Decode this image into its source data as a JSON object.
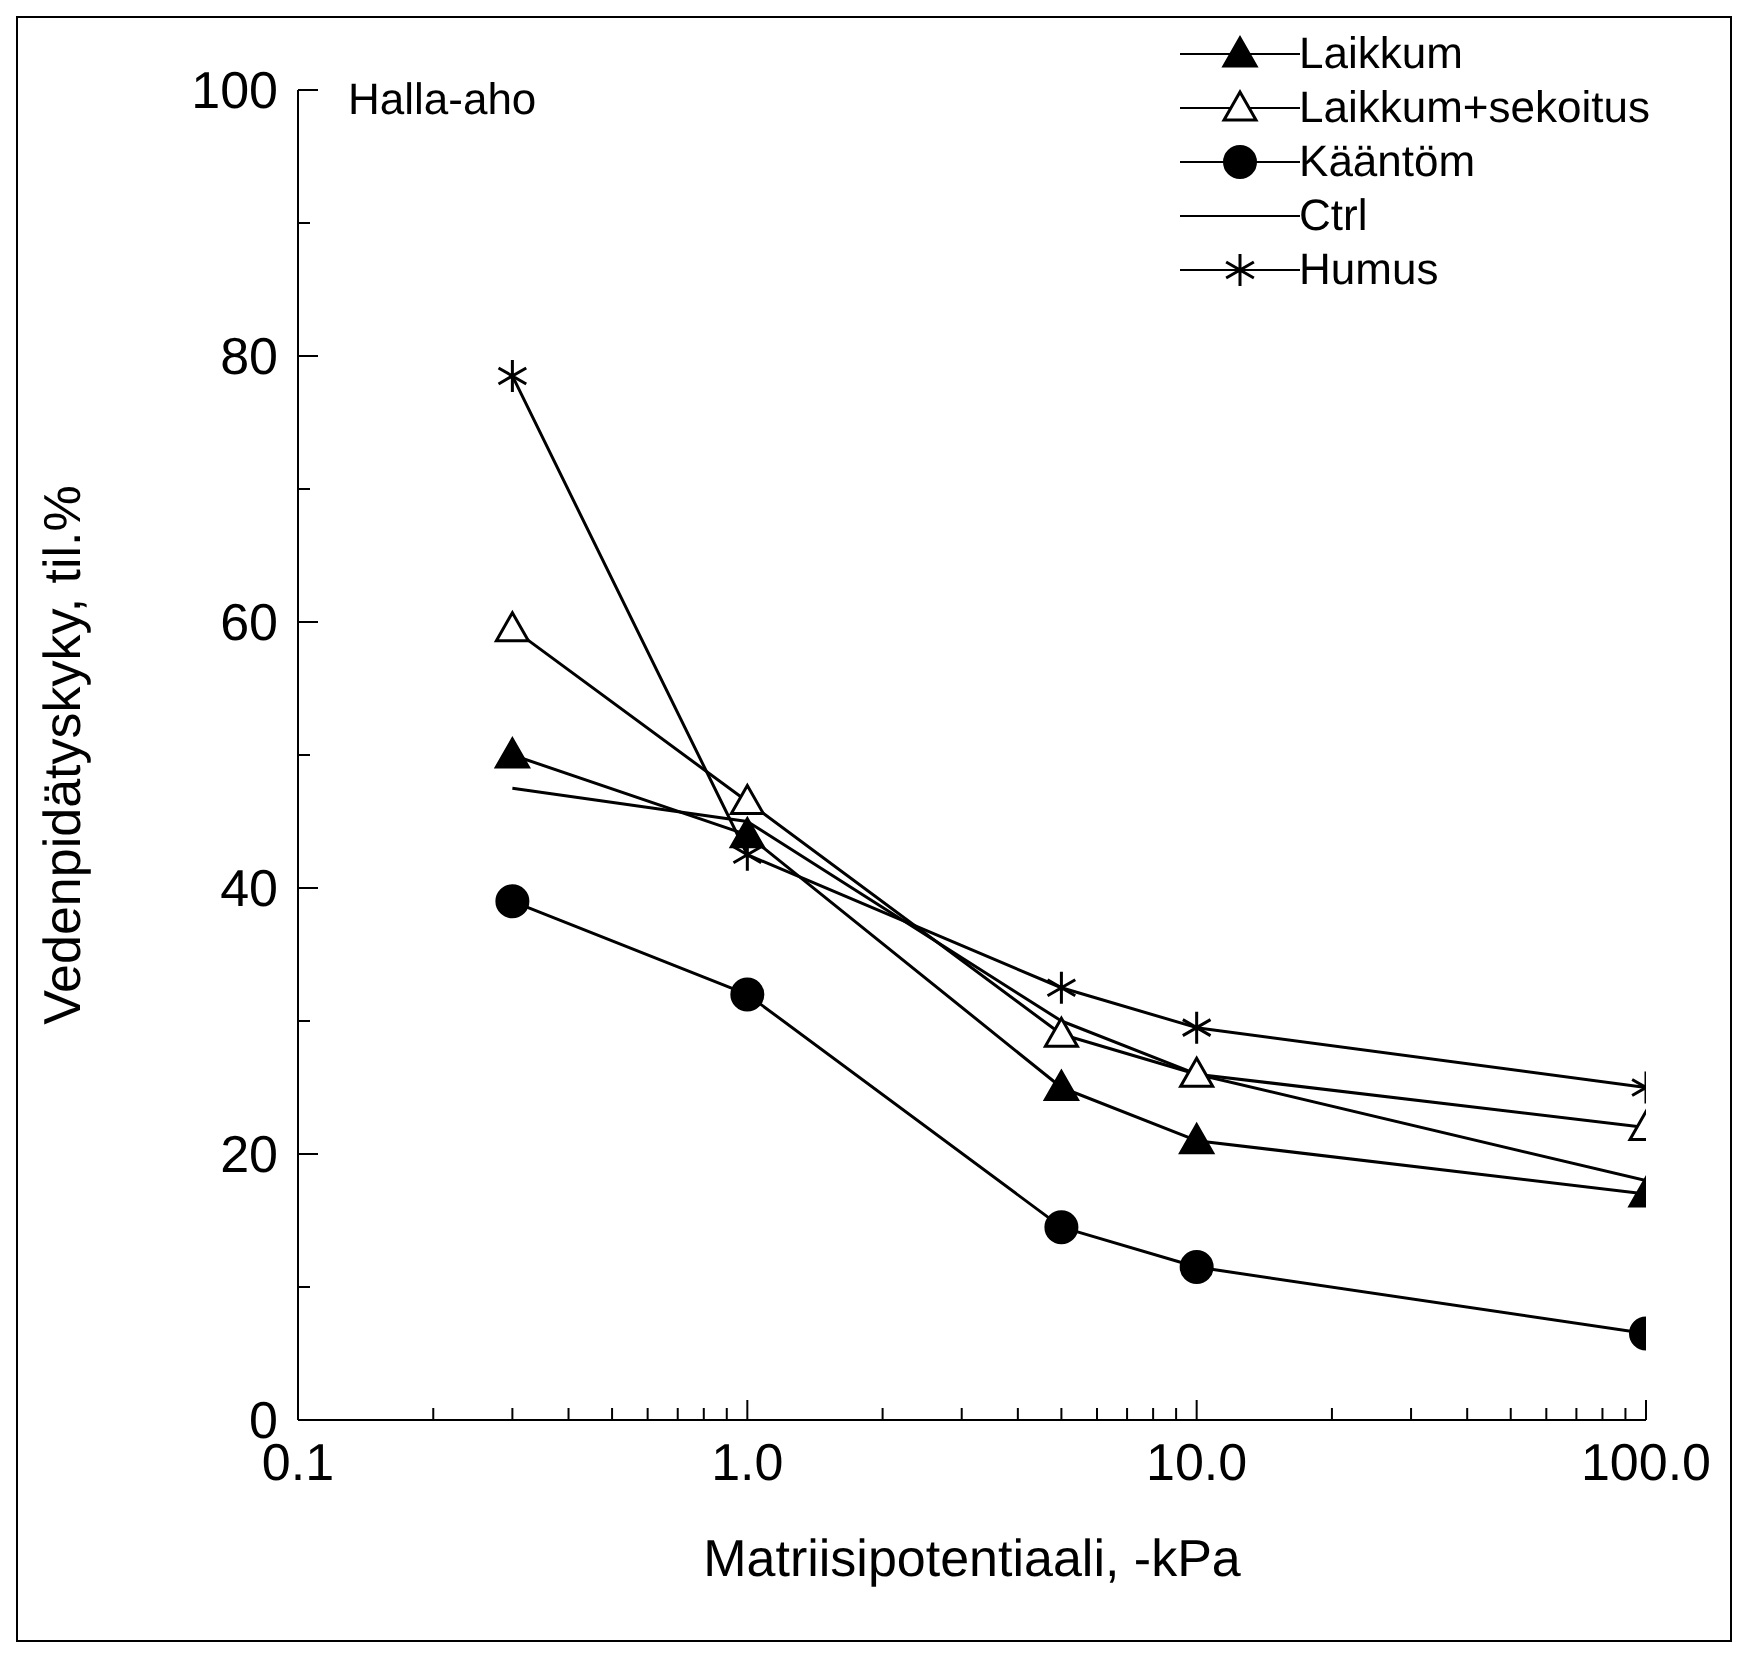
{
  "chart_data": {
    "type": "line",
    "xlabel": "Matriisipotentiaali, -kPa",
    "ylabel": "Vedenpidätyskyky, til.%",
    "annotations": [
      "Halla-aho"
    ],
    "log": "x",
    "xlim": [
      0.1,
      100
    ],
    "ylim": [
      0,
      100
    ],
    "xticks": [
      {
        "value": 0.1,
        "label": "0.1"
      },
      {
        "value": 0.2,
        "label": null
      },
      {
        "value": 0.3,
        "label": null
      },
      {
        "value": 0.4,
        "label": null
      },
      {
        "value": 0.5,
        "label": null
      },
      {
        "value": 0.6,
        "label": null
      },
      {
        "value": 0.7,
        "label": null
      },
      {
        "value": 0.8,
        "label": null
      },
      {
        "value": 0.9,
        "label": null
      },
      {
        "value": 1,
        "label": "1.0"
      },
      {
        "value": 2,
        "label": null
      },
      {
        "value": 3,
        "label": null
      },
      {
        "value": 4,
        "label": null
      },
      {
        "value": 5,
        "label": null
      },
      {
        "value": 6,
        "label": null
      },
      {
        "value": 7,
        "label": null
      },
      {
        "value": 8,
        "label": null
      },
      {
        "value": 9,
        "label": null
      },
      {
        "value": 10,
        "label": "10.0"
      },
      {
        "value": 20,
        "label": null
      },
      {
        "value": 30,
        "label": null
      },
      {
        "value": 40,
        "label": null
      },
      {
        "value": 50,
        "label": null
      },
      {
        "value": 60,
        "label": null
      },
      {
        "value": 70,
        "label": null
      },
      {
        "value": 80,
        "label": null
      },
      {
        "value": 90,
        "label": null
      },
      {
        "value": 100,
        "label": "100.0"
      }
    ],
    "yticks": [
      0,
      {
        "value": 10,
        "label": null
      },
      20,
      {
        "value": 30,
        "label": null
      },
      40,
      {
        "value": 50,
        "label": null
      },
      60,
      {
        "value": 70,
        "label": null
      },
      80,
      {
        "value": 90,
        "label": null
      },
      100
    ],
    "grid": false,
    "legend": "top right",
    "line_style": "solid",
    "series": [
      {
        "name": "Laikkum",
        "color": "#000000",
        "marker": "triangle",
        "x": [
          0.3,
          1,
          5,
          10,
          100
        ],
        "values": [
          50,
          44,
          25,
          21,
          17
        ]
      },
      {
        "name": "Laikkum+sekoitus",
        "color": "#000000",
        "marker": "triangle",
        "x": [
          0.3,
          1,
          5,
          10,
          100
        ],
        "values": [
          59.5,
          46.5,
          29,
          26,
          22
        ]
      },
      {
        "name": "Kääntöm",
        "color": "#000000",
        "marker": "circle",
        "x": [
          0.3,
          1,
          5,
          10,
          100
        ],
        "values": [
          39,
          32,
          14.5,
          11.5,
          6.5
        ]
      },
      {
        "name": "Ctrl",
        "color": "#000000",
        "marker": "none",
        "x": [
          0.3,
          1,
          5,
          10,
          100
        ],
        "values": [
          47.5,
          45,
          30,
          26,
          18
        ]
      },
      {
        "name": "Humus",
        "color": "#000000",
        "marker": "cross",
        "x": [
          0.3,
          1,
          5,
          10,
          100
        ],
        "values": [
          78.5,
          42.5,
          32.5,
          29.5,
          25
        ]
      }
    ]
  }
}
